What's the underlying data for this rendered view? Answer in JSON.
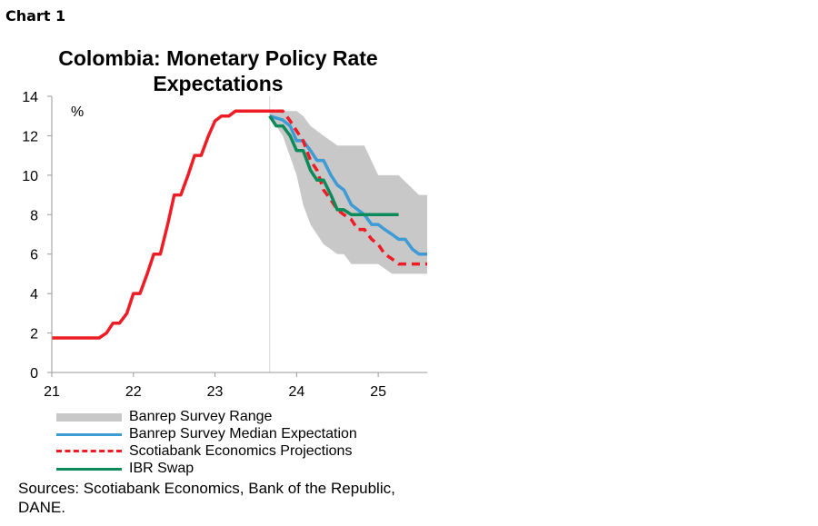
{
  "header": {
    "chart_label": "Chart 1"
  },
  "chart_data": {
    "type": "line",
    "title": "Colombia: Monetary Policy Rate\nExpectations",
    "ylabel": "%",
    "xlim": [
      21,
      25.6
    ],
    "ylim": [
      0,
      14
    ],
    "x_ticks": [
      "21",
      "22",
      "23",
      "24",
      "25"
    ],
    "y_ticks": [
      "0",
      "2",
      "4",
      "6",
      "8",
      "10",
      "12",
      "14"
    ],
    "grid": false,
    "legend_position": "bottom",
    "series": [
      {
        "name": "Banrep Survey Range",
        "kind": "range",
        "color": "#c8c8c8",
        "x": [
          23.67,
          23.83,
          24.0,
          24.08,
          24.17,
          24.25,
          24.33,
          24.5,
          24.58,
          24.67,
          24.83,
          25.0,
          25.17,
          25.25,
          25.5,
          25.6
        ],
        "low": [
          13.0,
          12.0,
          10.0,
          8.5,
          7.5,
          7.0,
          6.5,
          6.0,
          6.0,
          5.5,
          5.5,
          5.5,
          5.0,
          5.0,
          5.0,
          5.0
        ],
        "high": [
          13.25,
          13.25,
          13.25,
          13.0,
          12.5,
          12.25,
          12.0,
          11.5,
          11.5,
          11.5,
          11.5,
          10.0,
          10.0,
          10.0,
          9.0,
          9.0
        ]
      },
      {
        "name": "Banrep Survey Median Expectation",
        "kind": "line",
        "color": "#3d9bd6",
        "x": [
          23.67,
          23.75,
          23.83,
          23.92,
          24.0,
          24.08,
          24.17,
          24.25,
          24.33,
          24.42,
          24.5,
          24.58,
          24.67,
          24.75,
          24.83,
          24.92,
          25.0,
          25.08,
          25.17,
          25.25,
          25.33,
          25.42,
          25.5,
          25.6
        ],
        "y": [
          13.0,
          12.9,
          12.8,
          12.5,
          11.75,
          11.75,
          11.25,
          10.75,
          10.75,
          10.0,
          9.5,
          9.25,
          8.5,
          8.25,
          8.0,
          7.5,
          7.5,
          7.25,
          7.0,
          6.75,
          6.75,
          6.25,
          6.0,
          6.0
        ]
      },
      {
        "name": "Scotiabank Economics Projections",
        "kind": "dashed",
        "color": "#ee1c25",
        "x": [
          23.75,
          23.83,
          23.92,
          24.0,
          24.08,
          24.17,
          24.25,
          24.33,
          24.42,
          24.5,
          24.58,
          24.67,
          24.75,
          24.83,
          24.92,
          25.0,
          25.08,
          25.17,
          25.25,
          25.33,
          25.42,
          25.5,
          25.6
        ],
        "y": [
          13.25,
          13.25,
          12.75,
          12.25,
          11.75,
          10.75,
          10.25,
          9.25,
          8.75,
          8.25,
          8.0,
          7.75,
          7.25,
          7.25,
          6.75,
          6.5,
          6.0,
          5.75,
          5.5,
          5.5,
          5.5,
          5.5,
          5.5
        ]
      },
      {
        "name": "IBR Swap",
        "kind": "line",
        "color": "#0b8a5a",
        "x": [
          23.67,
          23.75,
          23.83,
          23.92,
          24.0,
          24.08,
          24.17,
          24.25,
          24.33,
          24.42,
          24.5,
          24.58,
          24.67,
          24.75,
          24.83,
          24.92,
          25.0,
          25.08,
          25.17,
          25.25
        ],
        "y": [
          13.0,
          12.5,
          12.5,
          12.0,
          11.25,
          11.25,
          10.25,
          9.75,
          9.75,
          9.0,
          8.25,
          8.25,
          8.0,
          8.0,
          8.0,
          8.0,
          8.0,
          8.0,
          8.0,
          8.0
        ]
      },
      {
        "name": "",
        "kind": "line",
        "color": "#ee1c25",
        "x": [
          21.0,
          21.5,
          21.58,
          21.67,
          21.75,
          21.83,
          21.92,
          22.0,
          22.08,
          22.17,
          22.25,
          22.33,
          22.42,
          22.5,
          22.58,
          22.67,
          22.75,
          22.83,
          22.92,
          23.0,
          23.08,
          23.17,
          23.25,
          23.33,
          23.42,
          23.5,
          23.58,
          23.67,
          23.75
        ],
        "y": [
          1.75,
          1.75,
          1.75,
          2.0,
          2.5,
          2.5,
          3.0,
          4.0,
          4.0,
          5.0,
          6.0,
          6.0,
          7.5,
          9.0,
          9.0,
          10.0,
          11.0,
          11.0,
          12.0,
          12.75,
          13.0,
          13.0,
          13.25,
          13.25,
          13.25,
          13.25,
          13.25,
          13.25,
          13.25
        ]
      }
    ]
  },
  "legend": {
    "items": [
      {
        "label": "Banrep Survey Range",
        "color": "#c8c8c8"
      },
      {
        "label": "Banrep Survey Median Expectation",
        "color": "#3d9bd6"
      },
      {
        "label": "Scotiabank Economics Projections",
        "color": "#ee1c25"
      },
      {
        "label": "IBR Swap",
        "color": "#0b8a5a"
      }
    ]
  },
  "footer": {
    "sources": "Sources: Scotiabank Economics, Bank of the Republic, DANE."
  }
}
